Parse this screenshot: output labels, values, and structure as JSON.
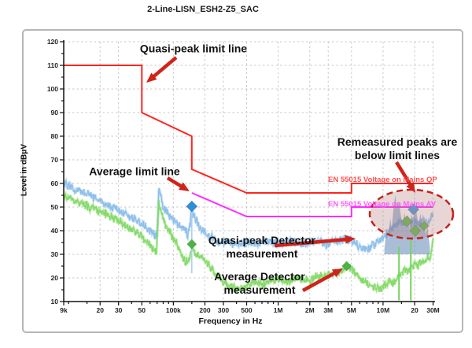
{
  "title": "2-Line-LISN_ESH2-Z5_SAC",
  "chart_data": {
    "type": "line",
    "title": "2-Line-LISN_ESH2-Z5_SAC",
    "xlabel": "Frequency in Hz",
    "ylabel": "Level in dBμV",
    "x_scale": "log",
    "x_range_hz": [
      9000,
      30000000
    ],
    "ylim": [
      10,
      120
    ],
    "grid": true,
    "y_ticks": [
      120,
      110,
      100,
      90,
      80,
      70,
      60,
      50,
      40,
      30,
      20,
      10
    ],
    "x_ticks": [
      {
        "f": 9000,
        "label": "9k"
      },
      {
        "f": 20000,
        "label": "20"
      },
      {
        "f": 30000,
        "label": "30"
      },
      {
        "f": 50000,
        "label": "50"
      },
      {
        "f": 100000,
        "label": "100k"
      },
      {
        "f": 200000,
        "label": "200"
      },
      {
        "f": 300000,
        "label": "300"
      },
      {
        "f": 500000,
        "label": "500"
      },
      {
        "f": 1000000,
        "label": "1M"
      },
      {
        "f": 2000000,
        "label": "2M"
      },
      {
        "f": 3000000,
        "label": "3M"
      },
      {
        "f": 5000000,
        "label": "5M"
      },
      {
        "f": 10000000,
        "label": "10M"
      },
      {
        "f": 20000000,
        "label": "20"
      },
      {
        "f": 30000000,
        "label": "30M"
      }
    ],
    "x_minor_ticks": [
      10000,
      15000,
      40000,
      60000,
      70000,
      80000,
      90000,
      150000,
      400000,
      600000,
      700000,
      800000,
      900000,
      1500000,
      4000000,
      6000000,
      7000000,
      8000000,
      9000000,
      15000000
    ],
    "limit_lines": [
      {
        "name": "EN 55015 Voltage on Mains QP",
        "color": "#ff2420",
        "label_color": "#ff5050",
        "points": [
          [
            9000,
            110
          ],
          [
            50000,
            110
          ],
          [
            50000,
            90
          ],
          [
            150000,
            80
          ],
          [
            150000,
            66
          ],
          [
            500000,
            56
          ],
          [
            5000000,
            56
          ],
          [
            5000000,
            60
          ],
          [
            30000000,
            60
          ]
        ]
      },
      {
        "name": "EN 55015 Voltage on Mains AV",
        "color": "#ff2bff",
        "label_color": "#ff5cff",
        "points": [
          [
            150000,
            56
          ],
          [
            500000,
            46
          ],
          [
            5000000,
            46
          ],
          [
            5000000,
            50
          ],
          [
            30000000,
            50
          ]
        ]
      }
    ],
    "series": [
      {
        "name": "Quasi-peak Detector measurement",
        "color": "#8abde9",
        "noise_db": 2.1,
        "points": [
          [
            9000,
            60
          ],
          [
            10500,
            58.5
          ],
          [
            12000,
            57
          ],
          [
            14000,
            56
          ],
          [
            17000,
            54.5
          ],
          [
            20000,
            52.5
          ],
          [
            24000,
            51
          ],
          [
            29000,
            49
          ],
          [
            35000,
            47
          ],
          [
            43000,
            45
          ],
          [
            52000,
            42.5
          ],
          [
            60000,
            40
          ],
          [
            66000,
            38
          ],
          [
            70000,
            37.5
          ],
          [
            72500,
            57.5
          ],
          [
            76000,
            55
          ],
          [
            80000,
            50
          ],
          [
            88000,
            47.5
          ],
          [
            100000,
            45
          ],
          [
            112000,
            42.5
          ],
          [
            125000,
            41
          ],
          [
            138000,
            38.5
          ],
          [
            145000,
            43
          ],
          [
            150000,
            49
          ],
          [
            156000,
            46.5
          ],
          [
            168000,
            43.5
          ],
          [
            185000,
            40.5
          ],
          [
            210000,
            38
          ],
          [
            240000,
            36.5
          ],
          [
            280000,
            35.5
          ],
          [
            340000,
            35
          ],
          [
            420000,
            34.5
          ],
          [
            520000,
            35
          ],
          [
            650000,
            34.5
          ],
          [
            800000,
            35.5
          ],
          [
            1000000,
            34.5
          ],
          [
            1300000,
            35.5
          ],
          [
            1700000,
            34.5
          ],
          [
            2200000,
            35.5
          ],
          [
            2800000,
            34.5
          ],
          [
            3500000,
            35.5
          ],
          [
            4300000,
            36.5
          ],
          [
            5000000,
            36
          ],
          [
            5600000,
            34
          ],
          [
            6500000,
            32.5
          ],
          [
            7500000,
            33
          ],
          [
            8500000,
            34.5
          ],
          [
            9500000,
            36
          ],
          [
            11000000,
            39
          ],
          [
            12500000,
            42
          ],
          [
            14000000,
            44
          ],
          [
            15500000,
            42.5
          ],
          [
            17000000,
            44
          ],
          [
            18500000,
            43
          ],
          [
            20000000,
            44.5
          ],
          [
            22000000,
            43
          ],
          [
            24000000,
            44.5
          ],
          [
            26000000,
            43.5
          ],
          [
            28000000,
            44.5
          ],
          [
            30000000,
            47
          ]
        ]
      },
      {
        "name": "Average Detector measurement",
        "color": "#82d965",
        "noise_db": 2.0,
        "points": [
          [
            9000,
            55
          ],
          [
            11000,
            53
          ],
          [
            13000,
            51.5
          ],
          [
            16000,
            50
          ],
          [
            19000,
            48.5
          ],
          [
            23000,
            47
          ],
          [
            28000,
            45
          ],
          [
            34000,
            42.5
          ],
          [
            42000,
            40
          ],
          [
            50000,
            37.5
          ],
          [
            58000,
            35
          ],
          [
            64000,
            32.5
          ],
          [
            69000,
            31.5
          ],
          [
            72500,
            51.5
          ],
          [
            76000,
            48
          ],
          [
            81000,
            43.5
          ],
          [
            90000,
            40
          ],
          [
            100000,
            37
          ],
          [
            110000,
            33.5
          ],
          [
            120000,
            30
          ],
          [
            130000,
            26.5
          ],
          [
            140000,
            27.5
          ],
          [
            147000,
            31
          ],
          [
            151000,
            33.5
          ],
          [
            158000,
            31
          ],
          [
            170000,
            29.5
          ],
          [
            185000,
            28
          ],
          [
            200000,
            27.5
          ],
          [
            215000,
            25.5
          ],
          [
            235000,
            23.5
          ],
          [
            260000,
            21
          ],
          [
            300000,
            18.5
          ],
          [
            350000,
            16.5
          ],
          [
            420000,
            15
          ],
          [
            500000,
            16.5
          ],
          [
            600000,
            18
          ],
          [
            700000,
            17
          ],
          [
            850000,
            18.5
          ],
          [
            1000000,
            19.5
          ],
          [
            1200000,
            18.5
          ],
          [
            1500000,
            20
          ],
          [
            1900000,
            19
          ],
          [
            2400000,
            20.5
          ],
          [
            3000000,
            21
          ],
          [
            3600000,
            22
          ],
          [
            4300000,
            24
          ],
          [
            4700000,
            25
          ],
          [
            5300000,
            22.5
          ],
          [
            6200000,
            19.5
          ],
          [
            7200000,
            17.5
          ],
          [
            8200000,
            16
          ],
          [
            9200000,
            15.5
          ],
          [
            10500000,
            17
          ],
          [
            11500000,
            19
          ],
          [
            12800000,
            18
          ],
          [
            14200000,
            20.5
          ],
          [
            15500000,
            22.5
          ],
          [
            16500000,
            24
          ],
          [
            17500000,
            23
          ],
          [
            18500000,
            25.5
          ],
          [
            19500000,
            24
          ],
          [
            20500000,
            27
          ],
          [
            21500000,
            25
          ],
          [
            22500000,
            26.5
          ],
          [
            23500000,
            28
          ],
          [
            24500000,
            26
          ],
          [
            25500000,
            27.5
          ],
          [
            26500000,
            29
          ],
          [
            27500000,
            28
          ],
          [
            28500000,
            30.5
          ],
          [
            29300000,
            33
          ],
          [
            30000000,
            36.5
          ]
        ]
      }
    ],
    "remeasured_peaks": {
      "fill": "rgba(96,136,183,0.55)",
      "baseline_level": 30,
      "noise_db": 1.5,
      "top_profile": [
        [
          10300000,
          33
        ],
        [
          10800000,
          40
        ],
        [
          11200000,
          36
        ],
        [
          11700000,
          45
        ],
        [
          12100000,
          41
        ],
        [
          12600000,
          49
        ],
        [
          13100000,
          55
        ],
        [
          13600000,
          50
        ],
        [
          14200000,
          53
        ],
        [
          14800000,
          46
        ],
        [
          15400000,
          43
        ],
        [
          16000000,
          48
        ],
        [
          16600000,
          43
        ],
        [
          17300000,
          46
        ],
        [
          18000000,
          41
        ],
        [
          18700000,
          47
        ],
        [
          19400000,
          43
        ],
        [
          20200000,
          52
        ],
        [
          21000000,
          47
        ],
        [
          21800000,
          43
        ],
        [
          22700000,
          47
        ],
        [
          23600000,
          42
        ],
        [
          24500000,
          45
        ],
        [
          25500000,
          39
        ],
        [
          26500000,
          42
        ],
        [
          27500000,
          36
        ],
        [
          28000000,
          33
        ]
      ]
    },
    "markers": [
      {
        "f": 150000,
        "level": 50.3,
        "color": "#2e8fd6",
        "r": 7
      },
      {
        "f": 150000,
        "level": 34.3,
        "color": "#4db344",
        "r": 6
      },
      {
        "f": 4500000,
        "level": 25,
        "color": "#4db344",
        "r": 6
      },
      {
        "f": 19500000,
        "level": 49,
        "color": "#4a9bd9",
        "r": 7
      },
      {
        "f": 16900000,
        "level": 44,
        "color": "#63bb50",
        "r": 7
      },
      {
        "f": 20300000,
        "level": 40,
        "color": "#63bb50",
        "r": 7
      },
      {
        "f": 24600000,
        "level": 42,
        "color": "#63bb50",
        "r": 6
      }
    ],
    "marker_lines": [
      {
        "f": 150000,
        "from": 51,
        "to": 22,
        "color": "#a8cdec",
        "w": 1.5
      },
      {
        "f": 14200000,
        "from": 33,
        "to": 10.5,
        "color": "#74d45e",
        "w": 2
      },
      {
        "f": 18400000,
        "from": 36,
        "to": 10.5,
        "color": "#74d45e",
        "w": 2
      }
    ],
    "highlight_ellipse": {
      "cx": 523,
      "cy": 272,
      "rx": 53,
      "ry": 31,
      "stroke": "#c22218",
      "fill": "rgba(186,132,132,0.33)"
    },
    "arrow_color": "#ce241a",
    "annotations": [
      {
        "text": "Quasi-peak limit line",
        "arrow": [
          224,
          73,
          186,
          105
        ]
      },
      {
        "text": "Average limit line",
        "arrow": [
          213,
          226,
          241,
          243
        ]
      },
      {
        "text": "Quasi-peak Detector measurement",
        "arrow": [
          349,
          312,
          452,
          303
        ]
      },
      {
        "text": "Average Detector measurement",
        "arrow": [
          385,
          369,
          436,
          341
        ]
      },
      {
        "text": "Remeasured peaks are below limit lines",
        "arrow": [
          504,
          206,
          528,
          245
        ]
      }
    ]
  }
}
